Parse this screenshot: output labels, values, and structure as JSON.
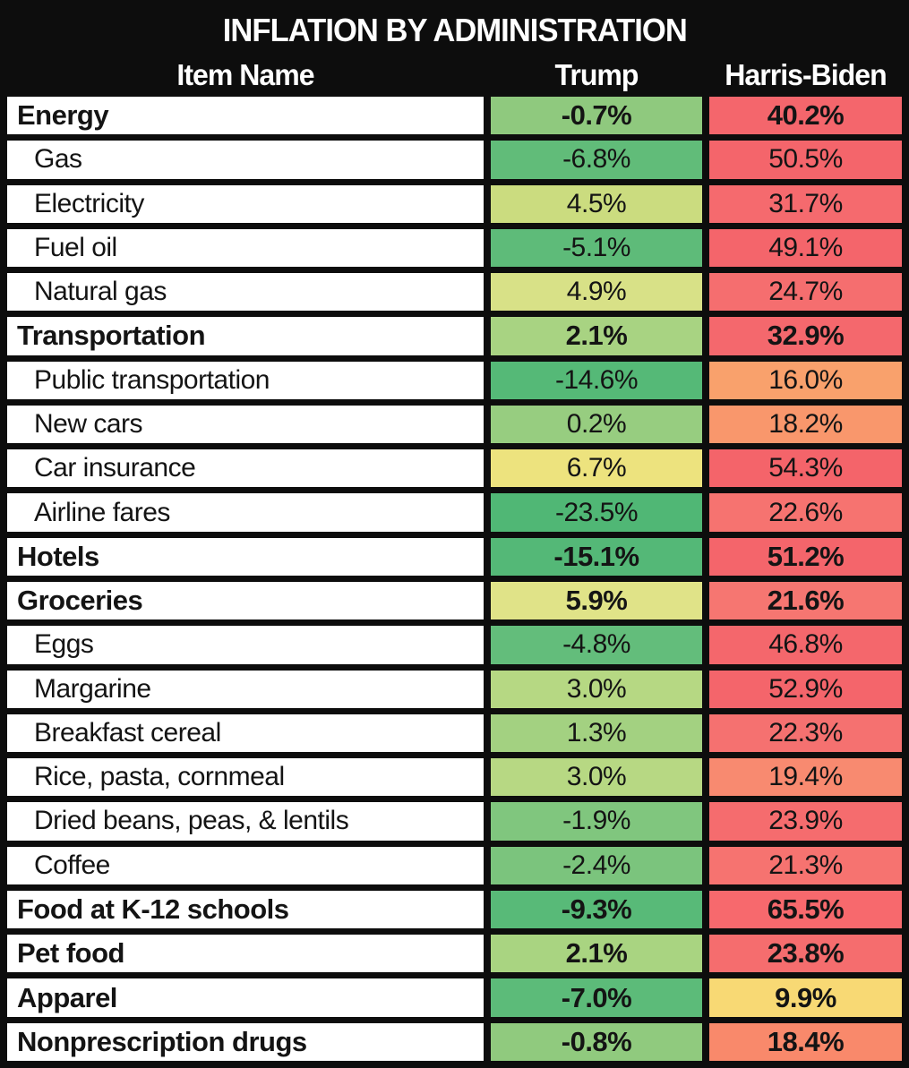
{
  "title": "INFLATION BY ADMINISTRATION",
  "columns": {
    "item": "Item Name",
    "trump": "Trump",
    "harris": "Harris-Biden"
  },
  "colors": {
    "page_background": "#0d0d0d",
    "header_text": "#ffffff",
    "item_cell_background": "#ffffff",
    "body_text": "#141414",
    "scale_green_low": "#50B775",
    "scale_yellow_mid": "#EDE37E",
    "scale_red_high": "#F25F69"
  },
  "chart_data": {
    "type": "table",
    "title": "INFLATION BY ADMINISTRATION",
    "columns": [
      "Item Name",
      "Trump",
      "Harris-Biden"
    ],
    "unit": "%",
    "value_format": "one_decimal_percent",
    "color_scale_note": "green = low/negative inflation, yellow = mid, red = high inflation",
    "rows": [
      {
        "item": "Energy",
        "category": true,
        "trump": -0.7,
        "harris": 40.2,
        "trump_color": "#8FC97E",
        "harris_color": "#F4666C"
      },
      {
        "item": "Gas",
        "category": false,
        "trump": -6.8,
        "harris": 50.5,
        "trump_color": "#61BC79",
        "harris_color": "#F4656B"
      },
      {
        "item": "Electricity",
        "category": false,
        "trump": 4.5,
        "harris": 31.7,
        "trump_color": "#CBDC7F",
        "harris_color": "#F56A6E"
      },
      {
        "item": "Fuel oil",
        "category": false,
        "trump": -5.1,
        "harris": 49.1,
        "trump_color": "#5EBB79",
        "harris_color": "#F4656B"
      },
      {
        "item": "Natural gas",
        "category": false,
        "trump": 4.9,
        "harris": 24.7,
        "trump_color": "#D8E187",
        "harris_color": "#F56E6F"
      },
      {
        "item": "Transportation",
        "category": true,
        "trump": 2.1,
        "harris": 32.9,
        "trump_color": "#A8D382",
        "harris_color": "#F4686D"
      },
      {
        "item": "Public transportation",
        "category": false,
        "trump": -14.6,
        "harris": 16.0,
        "trump_color": "#55B977",
        "harris_color": "#F9A16C"
      },
      {
        "item": "New cars",
        "category": false,
        "trump": 0.2,
        "harris": 18.2,
        "trump_color": "#97CD80",
        "harris_color": "#F9976C"
      },
      {
        "item": "Car insurance",
        "category": false,
        "trump": 6.7,
        "harris": 54.3,
        "trump_color": "#EDE37E",
        "harris_color": "#F4646A"
      },
      {
        "item": "Airline fares",
        "category": false,
        "trump": -23.5,
        "harris": 22.6,
        "trump_color": "#50B775",
        "harris_color": "#F67370"
      },
      {
        "item": "Hotels",
        "category": true,
        "trump": -15.1,
        "harris": 51.2,
        "trump_color": "#54B877",
        "harris_color": "#F4656B"
      },
      {
        "item": "Groceries",
        "category": true,
        "trump": 5.9,
        "harris": 21.6,
        "trump_color": "#E0E388",
        "harris_color": "#F67671"
      },
      {
        "item": "Eggs",
        "category": false,
        "trump": -4.8,
        "harris": 46.8,
        "trump_color": "#63BD7B",
        "harris_color": "#F4676C"
      },
      {
        "item": "Margarine",
        "category": false,
        "trump": 3.0,
        "harris": 52.9,
        "trump_color": "#B6D883",
        "harris_color": "#F4656B"
      },
      {
        "item": "Breakfast cereal",
        "category": false,
        "trump": 1.3,
        "harris": 22.3,
        "trump_color": "#A3D181",
        "harris_color": "#F57170"
      },
      {
        "item": "Rice, pasta, cornmeal",
        "category": false,
        "trump": 3.0,
        "harris": 19.4,
        "trump_color": "#B7D883",
        "harris_color": "#F88A70"
      },
      {
        "item": "Dried beans, peas, & lentils",
        "category": false,
        "trump": -1.9,
        "harris": 23.9,
        "trump_color": "#80C67E",
        "harris_color": "#F56C6E"
      },
      {
        "item": "Coffee",
        "category": false,
        "trump": -2.4,
        "harris": 21.3,
        "trump_color": "#7BC47D",
        "harris_color": "#F67370"
      },
      {
        "item": "Food at K-12 schools",
        "category": true,
        "trump": -9.3,
        "harris": 65.5,
        "trump_color": "#58BA78",
        "harris_color": "#F7696D"
      },
      {
        "item": "Pet food",
        "category": true,
        "trump": 2.1,
        "harris": 23.8,
        "trump_color": "#A9D481",
        "harris_color": "#F56D6E"
      },
      {
        "item": "Apparel",
        "category": true,
        "trump": -7.0,
        "harris": 9.9,
        "trump_color": "#5CBB79",
        "harris_color": "#F8D974"
      },
      {
        "item": "Nonprescription drugs",
        "category": true,
        "trump": -0.8,
        "harris": 18.4,
        "trump_color": "#90CA7E",
        "harris_color": "#F9896B"
      }
    ]
  }
}
